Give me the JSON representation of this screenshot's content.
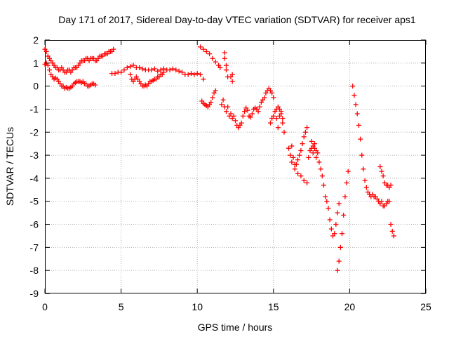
{
  "chart_data": {
    "type": "scatter",
    "title": "Day 171 of 2017, Sidereal Day-to-day VTEC variation (SDTVAR) for receiver aps1",
    "xlabel": "GPS time / hours",
    "ylabel": "SDTVAR / TECUs",
    "xlim": [
      0,
      25
    ],
    "ylim": [
      -9,
      2
    ],
    "xticks": [
      0,
      5,
      10,
      15,
      20,
      25
    ],
    "yticks": [
      -9,
      -8,
      -7,
      -6,
      -5,
      -4,
      -3,
      -2,
      -1,
      0,
      1,
      2
    ],
    "grid": true,
    "marker": "+",
    "color": "#ff0000",
    "series": [
      {
        "points": [
          [
            0.0,
            1.6
          ],
          [
            0.1,
            1.5
          ],
          [
            0.2,
            1.3
          ],
          [
            0.3,
            1.2
          ],
          [
            0.4,
            1.1
          ],
          [
            0.5,
            1.0
          ],
          [
            0.6,
            0.9
          ],
          [
            0.7,
            0.8
          ],
          [
            0.8,
            0.8
          ],
          [
            0.9,
            0.7
          ],
          [
            1.0,
            0.7
          ],
          [
            1.1,
            0.8
          ],
          [
            1.2,
            0.7
          ],
          [
            1.3,
            0.6
          ],
          [
            1.4,
            0.6
          ],
          [
            1.5,
            0.7
          ],
          [
            1.6,
            0.7
          ],
          [
            1.7,
            0.6
          ],
          [
            1.8,
            0.7
          ],
          [
            1.9,
            0.8
          ],
          [
            2.0,
            0.8
          ],
          [
            2.1,
            0.8
          ],
          [
            2.2,
            0.9
          ],
          [
            2.3,
            1.0
          ],
          [
            2.4,
            1.1
          ],
          [
            2.5,
            1.1
          ],
          [
            2.6,
            1.1
          ],
          [
            2.7,
            1.2
          ],
          [
            2.8,
            1.2
          ],
          [
            2.9,
            1.1
          ],
          [
            3.0,
            1.2
          ],
          [
            3.1,
            1.2
          ],
          [
            3.2,
            1.2
          ],
          [
            3.3,
            1.1
          ],
          [
            3.4,
            1.1
          ],
          [
            3.5,
            1.2
          ],
          [
            3.6,
            1.3
          ],
          [
            3.7,
            1.3
          ],
          [
            3.8,
            1.3
          ],
          [
            3.9,
            1.4
          ],
          [
            4.0,
            1.4
          ],
          [
            4.1,
            1.4
          ],
          [
            4.2,
            1.5
          ],
          [
            4.3,
            1.5
          ],
          [
            4.4,
            1.5
          ],
          [
            4.5,
            1.6
          ],
          [
            0.0,
            0.95
          ],
          [
            0.1,
            1.0
          ],
          [
            0.2,
            0.9
          ],
          [
            0.3,
            0.7
          ],
          [
            0.4,
            0.5
          ],
          [
            0.5,
            0.4
          ],
          [
            0.6,
            0.3
          ],
          [
            0.7,
            0.35
          ],
          [
            0.8,
            0.3
          ],
          [
            0.9,
            0.2
          ],
          [
            1.0,
            0.1
          ],
          [
            1.1,
            0.0
          ],
          [
            1.2,
            0.0
          ],
          [
            1.3,
            -0.1
          ],
          [
            1.4,
            -0.05
          ],
          [
            1.5,
            -0.1
          ],
          [
            1.6,
            -0.1
          ],
          [
            1.7,
            -0.05
          ],
          [
            1.8,
            0.0
          ],
          [
            1.9,
            0.1
          ],
          [
            2.0,
            0.15
          ],
          [
            2.1,
            0.2
          ],
          [
            2.2,
            0.2
          ],
          [
            2.3,
            0.2
          ],
          [
            2.4,
            0.15
          ],
          [
            2.5,
            0.2
          ],
          [
            2.6,
            0.1
          ],
          [
            2.7,
            0.1
          ],
          [
            2.8,
            0.0
          ],
          [
            2.9,
            0.0
          ],
          [
            3.0,
            0.05
          ],
          [
            3.1,
            0.1
          ],
          [
            3.2,
            0.1
          ],
          [
            3.3,
            0.05
          ],
          [
            4.4,
            0.55
          ],
          [
            4.6,
            0.55
          ],
          [
            4.8,
            0.6
          ],
          [
            5.0,
            0.6
          ],
          [
            5.2,
            0.7
          ],
          [
            5.4,
            0.8
          ],
          [
            5.6,
            0.85
          ],
          [
            5.8,
            0.9
          ],
          [
            6.0,
            0.8
          ],
          [
            6.2,
            0.8
          ],
          [
            6.4,
            0.75
          ],
          [
            6.6,
            0.7
          ],
          [
            6.8,
            0.7
          ],
          [
            7.0,
            0.7
          ],
          [
            7.2,
            0.75
          ],
          [
            7.4,
            0.65
          ],
          [
            7.6,
            0.7
          ],
          [
            7.8,
            0.75
          ],
          [
            8.0,
            0.7
          ],
          [
            8.2,
            0.7
          ],
          [
            8.4,
            0.75
          ],
          [
            8.6,
            0.7
          ],
          [
            8.8,
            0.65
          ],
          [
            9.0,
            0.6
          ],
          [
            9.2,
            0.5
          ],
          [
            9.4,
            0.5
          ],
          [
            9.6,
            0.55
          ],
          [
            9.8,
            0.5
          ],
          [
            10.0,
            0.55
          ],
          [
            10.2,
            0.5
          ],
          [
            10.4,
            0.3
          ],
          [
            5.6,
            0.5
          ],
          [
            5.7,
            0.3
          ],
          [
            5.8,
            0.2
          ],
          [
            5.9,
            0.3
          ],
          [
            6.0,
            0.4
          ],
          [
            6.1,
            0.3
          ],
          [
            6.2,
            0.2
          ],
          [
            6.3,
            0.1
          ],
          [
            6.4,
            0.0
          ],
          [
            6.5,
            0.0
          ],
          [
            6.6,
            0.05
          ],
          [
            6.7,
            0.0
          ],
          [
            6.8,
            0.1
          ],
          [
            6.9,
            0.2
          ],
          [
            7.0,
            0.2
          ],
          [
            7.1,
            0.25
          ],
          [
            7.2,
            0.3
          ],
          [
            7.3,
            0.3
          ],
          [
            7.4,
            0.4
          ],
          [
            7.5,
            0.4
          ],
          [
            7.6,
            0.5
          ],
          [
            7.7,
            0.5
          ],
          [
            7.8,
            0.6
          ],
          [
            10.2,
            1.7
          ],
          [
            10.4,
            1.6
          ],
          [
            10.6,
            1.5
          ],
          [
            10.8,
            1.4
          ],
          [
            11.0,
            1.2
          ],
          [
            11.2,
            1.05
          ],
          [
            11.4,
            0.9
          ],
          [
            11.5,
            0.8
          ],
          [
            11.8,
            1.45
          ],
          [
            11.8,
            1.2
          ],
          [
            11.9,
            0.9
          ],
          [
            11.9,
            0.7
          ],
          [
            12.0,
            0.4
          ],
          [
            12.2,
            0.4
          ],
          [
            12.3,
            0.5
          ],
          [
            12.3,
            0.2
          ],
          [
            10.3,
            -0.65
          ],
          [
            10.4,
            -0.75
          ],
          [
            10.5,
            -0.8
          ],
          [
            10.6,
            -0.85
          ],
          [
            10.7,
            -0.9
          ],
          [
            10.8,
            -0.8
          ],
          [
            10.9,
            -0.7
          ],
          [
            11.0,
            -0.5
          ],
          [
            11.1,
            -0.3
          ],
          [
            11.2,
            -0.2
          ],
          [
            11.6,
            -0.8
          ],
          [
            11.7,
            -0.6
          ],
          [
            11.8,
            -0.9
          ],
          [
            11.9,
            -1.1
          ],
          [
            12.0,
            -0.9
          ],
          [
            12.1,
            -1.3
          ],
          [
            12.2,
            -1.2
          ],
          [
            12.3,
            -1.4
          ],
          [
            12.4,
            -1.3
          ],
          [
            12.5,
            -1.5
          ],
          [
            12.6,
            -1.7
          ],
          [
            12.7,
            -1.8
          ],
          [
            12.8,
            -1.7
          ],
          [
            12.9,
            -1.6
          ],
          [
            13.0,
            -1.3
          ],
          [
            13.1,
            -1.1
          ],
          [
            13.2,
            -0.95
          ],
          [
            13.3,
            -1.05
          ],
          [
            13.4,
            -1.3
          ],
          [
            13.5,
            -1.35
          ],
          [
            13.6,
            -1.2
          ],
          [
            13.7,
            -1.0
          ],
          [
            13.8,
            -0.95
          ],
          [
            13.9,
            -1.0
          ],
          [
            14.0,
            -1.1
          ],
          [
            14.1,
            -0.9
          ],
          [
            14.2,
            -0.7
          ],
          [
            14.3,
            -0.6
          ],
          [
            14.4,
            -0.5
          ],
          [
            14.5,
            -0.3
          ],
          [
            14.6,
            -0.2
          ],
          [
            14.7,
            -0.1
          ],
          [
            14.8,
            -0.2
          ],
          [
            14.9,
            -0.3
          ],
          [
            15.0,
            -0.5
          ],
          [
            14.8,
            -1.6
          ],
          [
            14.9,
            -1.4
          ],
          [
            15.0,
            -1.3
          ],
          [
            15.1,
            -1.1
          ],
          [
            15.2,
            -1.0
          ],
          [
            15.3,
            -0.9
          ],
          [
            15.4,
            -1.0
          ],
          [
            15.5,
            -1.2
          ],
          [
            15.6,
            -1.6
          ],
          [
            15.7,
            -2.0
          ],
          [
            15.2,
            -1.4
          ],
          [
            15.3,
            -1.8
          ],
          [
            15.4,
            -1.3
          ],
          [
            15.5,
            -1.1
          ],
          [
            15.6,
            -1.4
          ],
          [
            16.0,
            -2.7
          ],
          [
            16.1,
            -3.0
          ],
          [
            16.2,
            -2.6
          ],
          [
            16.3,
            -3.1
          ],
          [
            16.4,
            -3.4
          ],
          [
            16.5,
            -3.4
          ],
          [
            16.6,
            -3.2
          ],
          [
            16.7,
            -3.0
          ],
          [
            16.8,
            -2.8
          ],
          [
            16.9,
            -2.5
          ],
          [
            17.0,
            -2.2
          ],
          [
            17.1,
            -2.0
          ],
          [
            17.2,
            -1.8
          ],
          [
            16.2,
            -3.3
          ],
          [
            16.4,
            -3.6
          ],
          [
            16.6,
            -3.8
          ],
          [
            16.8,
            -3.9
          ],
          [
            17.0,
            -4.1
          ],
          [
            17.2,
            -4.2
          ],
          [
            17.3,
            -3.1
          ],
          [
            17.4,
            -2.8
          ],
          [
            17.5,
            -2.7
          ],
          [
            17.6,
            -2.6
          ],
          [
            17.7,
            -2.7
          ],
          [
            17.8,
            -2.8
          ],
          [
            17.9,
            -2.9
          ],
          [
            18.0,
            -3.3
          ],
          [
            18.1,
            -3.6
          ],
          [
            18.2,
            -3.9
          ],
          [
            18.3,
            -4.3
          ],
          [
            18.4,
            -4.8
          ],
          [
            18.5,
            -5.0
          ],
          [
            18.6,
            -5.3
          ],
          [
            18.7,
            -5.8
          ],
          [
            18.8,
            -6.2
          ],
          [
            18.9,
            -6.5
          ],
          [
            19.0,
            -6.4
          ],
          [
            19.1,
            -6.0
          ],
          [
            19.2,
            -5.5
          ],
          [
            19.3,
            -5.1
          ],
          [
            17.5,
            -2.4
          ],
          [
            17.6,
            -2.9
          ],
          [
            17.7,
            -2.5
          ],
          [
            17.8,
            -3.1
          ],
          [
            19.2,
            -8.0
          ],
          [
            19.3,
            -7.6
          ],
          [
            19.4,
            -7.0
          ],
          [
            19.5,
            -6.4
          ],
          [
            19.6,
            -5.6
          ],
          [
            19.7,
            -4.8
          ],
          [
            19.8,
            -4.2
          ],
          [
            19.9,
            -3.7
          ],
          [
            20.2,
            0.0
          ],
          [
            20.3,
            -0.4
          ],
          [
            20.4,
            -0.8
          ],
          [
            20.5,
            -1.2
          ],
          [
            20.6,
            -1.7
          ],
          [
            20.7,
            -2.3
          ],
          [
            20.8,
            -3.0
          ],
          [
            20.9,
            -3.6
          ],
          [
            21.0,
            -4.1
          ],
          [
            21.1,
            -4.4
          ],
          [
            21.2,
            -4.6
          ],
          [
            21.3,
            -4.7
          ],
          [
            21.4,
            -4.8
          ],
          [
            21.5,
            -4.7
          ],
          [
            21.6,
            -4.8
          ],
          [
            21.7,
            -4.8
          ],
          [
            21.8,
            -4.9
          ],
          [
            21.9,
            -5.0
          ],
          [
            22.0,
            -5.1
          ],
          [
            22.1,
            -5.0
          ],
          [
            22.2,
            -5.2
          ],
          [
            22.3,
            -5.2
          ],
          [
            22.4,
            -5.1
          ],
          [
            22.5,
            -5.0
          ],
          [
            22.6,
            -5.0
          ],
          [
            22.0,
            -3.5
          ],
          [
            22.1,
            -3.7
          ],
          [
            22.2,
            -3.9
          ],
          [
            22.3,
            -4.2
          ],
          [
            22.4,
            -4.3
          ],
          [
            22.5,
            -4.3
          ],
          [
            22.6,
            -4.4
          ],
          [
            22.7,
            -4.3
          ],
          [
            22.7,
            -6.0
          ],
          [
            22.8,
            -6.3
          ],
          [
            22.9,
            -6.5
          ]
        ]
      }
    ]
  }
}
